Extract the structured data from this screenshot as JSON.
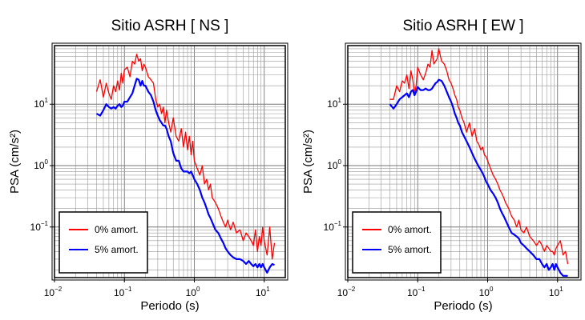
{
  "chart_data": [
    {
      "type": "line",
      "title": "Sitio ASRH [ NS ]",
      "xlabel": "Periodo (s)",
      "ylabel": "PSA (cm/s²)",
      "xscale": "log",
      "yscale": "log",
      "xlim": [
        0.01,
        20
      ],
      "ylim": [
        0.015,
        90
      ],
      "grid": true,
      "legend_position": "bottom-left",
      "x_ticks": [
        {
          "value": 0.01,
          "base": "10",
          "exp": "−2"
        },
        {
          "value": 0.1,
          "base": "10",
          "exp": "−1"
        },
        {
          "value": 1,
          "base": "10",
          "exp": "0"
        },
        {
          "value": 10,
          "base": "10",
          "exp": "1"
        }
      ],
      "y_ticks": [
        {
          "value": 0.1,
          "base": "10",
          "exp": "−1"
        },
        {
          "value": 1,
          "base": "10",
          "exp": "0"
        },
        {
          "value": 10,
          "base": "10",
          "exp": "1"
        }
      ],
      "series": [
        {
          "name": "0% amort.",
          "color": "#ff0000",
          "x": [
            0.04,
            0.045,
            0.05,
            0.055,
            0.06,
            0.065,
            0.07,
            0.075,
            0.08,
            0.085,
            0.09,
            0.095,
            0.1,
            0.11,
            0.12,
            0.13,
            0.14,
            0.15,
            0.16,
            0.17,
            0.18,
            0.19,
            0.2,
            0.22,
            0.24,
            0.26,
            0.28,
            0.3,
            0.32,
            0.34,
            0.36,
            0.38,
            0.4,
            0.43,
            0.46,
            0.5,
            0.55,
            0.6,
            0.65,
            0.7,
            0.75,
            0.8,
            0.85,
            0.9,
            0.95,
            1.0,
            1.1,
            1.2,
            1.3,
            1.4,
            1.5,
            1.6,
            1.7,
            1.8,
            2.0,
            2.2,
            2.4,
            2.6,
            2.8,
            3.0,
            3.3,
            3.6,
            4.0,
            4.5,
            5.0,
            5.5,
            6.0,
            6.5,
            7.0,
            7.5,
            8.0,
            8.5,
            9.0,
            9.5,
            10.0,
            11.0,
            12.0,
            13.0,
            14.0
          ],
          "y": [
            16,
            25,
            13,
            22,
            15,
            12,
            20,
            16,
            24,
            17,
            32,
            22,
            36,
            40,
            28,
            50,
            45,
            65,
            50,
            55,
            35,
            45,
            40,
            28,
            25,
            22,
            12,
            9,
            10,
            7,
            9,
            5,
            8,
            5,
            3.5,
            6,
            3,
            2.5,
            4,
            2,
            3.5,
            1.8,
            3,
            1.5,
            2.5,
            1.2,
            0.9,
            0.7,
            1.0,
            0.5,
            0.6,
            0.4,
            0.5,
            0.3,
            0.25,
            0.2,
            0.15,
            0.12,
            0.1,
            0.13,
            0.09,
            0.12,
            0.08,
            0.09,
            0.06,
            0.08,
            0.07,
            0.06,
            0.05,
            0.09,
            0.04,
            0.07,
            0.05,
            0.1,
            0.06,
            0.035,
            0.1,
            0.03,
            0.055
          ]
        },
        {
          "name": "5% amort.",
          "color": "#0000ff",
          "x": [
            0.04,
            0.045,
            0.05,
            0.055,
            0.06,
            0.065,
            0.07,
            0.075,
            0.08,
            0.085,
            0.09,
            0.095,
            0.1,
            0.11,
            0.12,
            0.13,
            0.14,
            0.15,
            0.16,
            0.17,
            0.18,
            0.19,
            0.2,
            0.22,
            0.24,
            0.26,
            0.28,
            0.3,
            0.32,
            0.34,
            0.36,
            0.38,
            0.4,
            0.43,
            0.46,
            0.5,
            0.55,
            0.6,
            0.65,
            0.7,
            0.75,
            0.8,
            0.85,
            0.9,
            0.95,
            1.0,
            1.1,
            1.2,
            1.3,
            1.4,
            1.5,
            1.6,
            1.7,
            1.8,
            2.0,
            2.2,
            2.4,
            2.6,
            2.8,
            3.0,
            3.3,
            3.6,
            4.0,
            4.5,
            5.0,
            5.5,
            6.0,
            6.5,
            7.0,
            7.5,
            8.0,
            8.5,
            9.0,
            9.5,
            10.0,
            11.0,
            12.0,
            13.0,
            14.0
          ],
          "y": [
            7,
            6.5,
            8,
            10,
            9,
            8.5,
            9,
            8.5,
            9.5,
            10,
            9,
            9.5,
            11,
            11,
            13,
            15,
            20,
            26,
            25,
            20,
            24,
            20,
            20,
            16,
            14,
            11,
            8,
            6.5,
            5.5,
            5,
            4.5,
            4.5,
            4,
            3,
            2.5,
            1.6,
            1.2,
            1.2,
            0.9,
            0.8,
            0.8,
            0.8,
            0.75,
            0.8,
            0.7,
            0.6,
            0.5,
            0.4,
            0.3,
            0.25,
            0.2,
            0.16,
            0.14,
            0.12,
            0.09,
            0.08,
            0.065,
            0.055,
            0.045,
            0.04,
            0.035,
            0.032,
            0.03,
            0.03,
            0.028,
            0.025,
            0.028,
            0.025,
            0.023,
            0.025,
            0.022,
            0.025,
            0.022,
            0.025,
            0.022,
            0.018,
            0.022,
            0.025,
            0.024
          ]
        }
      ]
    },
    {
      "type": "line",
      "title": "Sitio ASRH [ EW ]",
      "xlabel": "Periodo (s)",
      "ylabel": "PSA (cm/s²)",
      "xscale": "log",
      "yscale": "log",
      "xlim": [
        0.01,
        20
      ],
      "ylim": [
        0.015,
        90
      ],
      "grid": true,
      "legend_position": "bottom-left",
      "x_ticks": [
        {
          "value": 0.01,
          "base": "10",
          "exp": "−2"
        },
        {
          "value": 0.1,
          "base": "10",
          "exp": "−1"
        },
        {
          "value": 1,
          "base": "10",
          "exp": "0"
        },
        {
          "value": 10,
          "base": "10",
          "exp": "1"
        }
      ],
      "y_ticks": [
        {
          "value": 0.1,
          "base": "10",
          "exp": "−1"
        },
        {
          "value": 1,
          "base": "10",
          "exp": "0"
        },
        {
          "value": 10,
          "base": "10",
          "exp": "1"
        }
      ],
      "series": [
        {
          "name": "0% amort.",
          "color": "#ff0000",
          "x": [
            0.04,
            0.045,
            0.05,
            0.055,
            0.06,
            0.065,
            0.07,
            0.075,
            0.08,
            0.085,
            0.09,
            0.095,
            0.1,
            0.11,
            0.12,
            0.13,
            0.14,
            0.15,
            0.16,
            0.17,
            0.18,
            0.19,
            0.2,
            0.22,
            0.24,
            0.26,
            0.28,
            0.3,
            0.32,
            0.34,
            0.36,
            0.38,
            0.4,
            0.43,
            0.46,
            0.5,
            0.55,
            0.6,
            0.65,
            0.7,
            0.75,
            0.8,
            0.85,
            0.9,
            0.95,
            1.0,
            1.1,
            1.2,
            1.3,
            1.4,
            1.5,
            1.6,
            1.7,
            1.8,
            2.0,
            2.2,
            2.4,
            2.6,
            2.8,
            3.0,
            3.3,
            3.6,
            4.0,
            4.5,
            5.0,
            5.5,
            6.0,
            6.5,
            7.0,
            7.5,
            8.0,
            8.5,
            9.0,
            9.5,
            10.0,
            11.0,
            12.0,
            13.0,
            14.0
          ],
          "y": [
            12,
            12,
            20,
            16,
            24,
            22,
            30,
            18,
            35,
            25,
            15,
            20,
            40,
            30,
            25,
            32,
            45,
            40,
            75,
            45,
            50,
            55,
            80,
            50,
            45,
            35,
            25,
            22,
            18,
            14,
            12,
            9,
            8,
            6,
            5,
            3.5,
            5,
            3,
            4,
            2.5,
            2.2,
            1.8,
            2,
            1.5,
            1.4,
            1.2,
            0.9,
            0.7,
            0.6,
            0.5,
            0.4,
            0.35,
            0.3,
            0.25,
            0.2,
            0.15,
            0.13,
            0.1,
            0.13,
            0.09,
            0.08,
            0.1,
            0.07,
            0.06,
            0.05,
            0.06,
            0.05,
            0.04,
            0.05,
            0.045,
            0.04,
            0.04,
            0.035,
            0.045,
            0.05,
            0.06,
            0.035,
            0.04,
            0.025
          ]
        },
        {
          "name": "5% amort.",
          "color": "#0000ff",
          "x": [
            0.04,
            0.045,
            0.05,
            0.055,
            0.06,
            0.065,
            0.07,
            0.075,
            0.08,
            0.085,
            0.09,
            0.095,
            0.1,
            0.11,
            0.12,
            0.13,
            0.14,
            0.15,
            0.16,
            0.17,
            0.18,
            0.19,
            0.2,
            0.22,
            0.24,
            0.26,
            0.28,
            0.3,
            0.32,
            0.34,
            0.36,
            0.38,
            0.4,
            0.43,
            0.46,
            0.5,
            0.55,
            0.6,
            0.65,
            0.7,
            0.75,
            0.8,
            0.85,
            0.9,
            0.95,
            1.0,
            1.1,
            1.2,
            1.3,
            1.4,
            1.5,
            1.6,
            1.7,
            1.8,
            2.0,
            2.2,
            2.4,
            2.6,
            2.8,
            3.0,
            3.3,
            3.6,
            4.0,
            4.5,
            5.0,
            5.5,
            6.0,
            6.5,
            7.0,
            7.5,
            8.0,
            8.5,
            9.0,
            9.5,
            10.0,
            11.0,
            12.0,
            13.0,
            14.0
          ],
          "y": [
            10,
            8.5,
            10,
            12,
            13,
            14,
            15,
            13,
            16,
            17,
            14,
            16,
            19,
            17,
            17,
            18,
            17,
            17,
            18,
            20,
            22,
            23,
            25,
            24,
            20,
            16,
            13,
            11,
            9,
            7,
            6,
            5,
            4.5,
            3.5,
            3,
            2.5,
            2,
            1.6,
            1.3,
            1.1,
            0.95,
            0.85,
            0.75,
            0.65,
            0.55,
            0.5,
            0.4,
            0.35,
            0.3,
            0.25,
            0.2,
            0.17,
            0.15,
            0.13,
            0.1,
            0.08,
            0.075,
            0.07,
            0.065,
            0.055,
            0.05,
            0.045,
            0.04,
            0.035,
            0.03,
            0.03,
            0.025,
            0.022,
            0.025,
            0.02,
            0.022,
            0.025,
            0.02,
            0.025,
            0.022,
            0.018,
            0.016,
            0.016,
            0.016
          ]
        }
      ]
    }
  ]
}
